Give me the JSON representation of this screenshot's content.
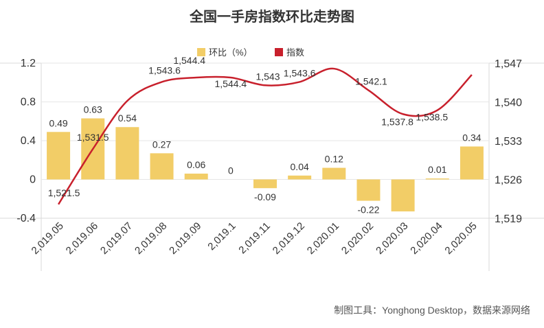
{
  "title": "全国一手房指数环比走势图",
  "footer": "制图工具：Yonghong Desktop，数据来源网络",
  "colors": {
    "bar": "#f2cd67",
    "line": "#c8202c",
    "grid": "#e6e6e6",
    "axis": "#bbbbbb"
  },
  "chart_data": {
    "type": "bar+line",
    "title": "全国一手房指数环比走势图",
    "categories": [
      "2,019.05",
      "2,019.06",
      "2,019.07",
      "2,019.08",
      "2,019.09",
      "2,019.1",
      "2,019.11",
      "2,019.12",
      "2,020.01",
      "2,020.02",
      "2,020.03",
      "2,020.04",
      "2,020.05"
    ],
    "series": [
      {
        "name": "环比（%）",
        "type": "bar",
        "axis": "left",
        "values": [
          0.49,
          0.63,
          0.54,
          0.27,
          0.06,
          0,
          -0.09,
          0.04,
          0.12,
          -0.22,
          -0.33,
          0.01,
          0.34
        ],
        "labels": [
          "0.49",
          "0.63",
          "0.54",
          "0.27",
          "0.06",
          "0",
          "-0.09",
          "0.04",
          "0.12",
          "-0.22",
          "",
          "0.01",
          "0.34"
        ]
      },
      {
        "name": "指数",
        "type": "line",
        "axis": "right",
        "smooth": true,
        "values": [
          1521.5,
          1531.5,
          1540.2,
          1543.6,
          1544.4,
          1544.4,
          1543,
          1543.6,
          1546,
          1542.1,
          1537.8,
          1538.5,
          1544.9
        ],
        "labels": [
          "1,521.5",
          "1,531.5",
          "",
          "1,543.6",
          "1,544.4",
          "1,544.4",
          "1,543",
          "1,543.6",
          "",
          "1,542.1",
          "1,537.8",
          "1,538.5",
          ""
        ]
      }
    ],
    "y_left": {
      "ticks": [
        -0.4,
        0,
        0.4,
        0.8,
        1.2
      ],
      "tick_labels": [
        "-0.4",
        "0",
        "0.4",
        "0.8",
        "1.2"
      ],
      "range": [
        -0.4,
        1.2
      ]
    },
    "y_right": {
      "ticks": [
        1519,
        1526,
        1533,
        1540,
        1547
      ],
      "tick_labels": [
        "1,519",
        "1,526",
        "1,533",
        "1,540",
        "1,547"
      ],
      "range": [
        1519,
        1547
      ]
    },
    "legend_position": "top-center",
    "grid": true
  }
}
